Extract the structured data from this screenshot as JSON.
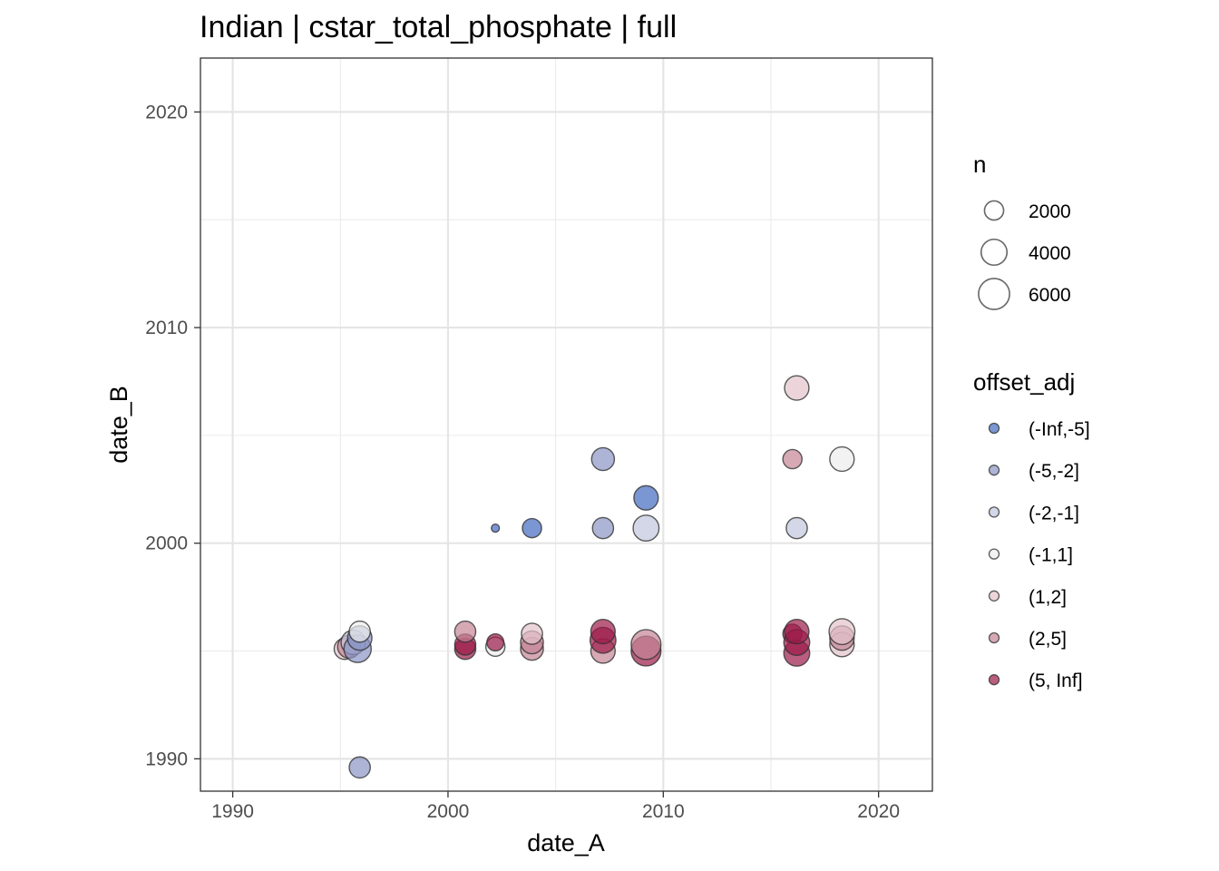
{
  "chart_data": {
    "type": "scatter",
    "title": "Indian | cstar_total_phosphate | full",
    "xlabel": "date_A",
    "ylabel": "date_B",
    "xlim": [
      1988.5,
      2022.5
    ],
    "ylim": [
      1988.5,
      2022.5
    ],
    "x_ticks": [
      1990,
      2000,
      2010,
      2020
    ],
    "y_ticks": [
      1990,
      2000,
      2010,
      2020
    ],
    "grid": true,
    "size_legend": {
      "title": "n",
      "entries": [
        {
          "label": "2000",
          "value": 2000
        },
        {
          "label": "4000",
          "value": 4000
        },
        {
          "label": "6000",
          "value": 6000
        }
      ]
    },
    "color_legend": {
      "title": "offset_adj",
      "entries": [
        {
          "label": "(-Inf,-5]",
          "color": "#4169c0"
        },
        {
          "label": "(-5,-2]",
          "color": "#8a94c4"
        },
        {
          "label": "(-2,-1]",
          "color": "#c2c6dd"
        },
        {
          "label": "(-1,1]",
          "color": "#ececec"
        },
        {
          "label": "(1,2]",
          "color": "#e3c3cc"
        },
        {
          "label": "(2,5]",
          "color": "#c58595"
        },
        {
          "label": "(5, Inf]",
          "color": "#9c1a48"
        }
      ]
    },
    "points": [
      {
        "x": 1995.2,
        "y": 1995.1,
        "n": 2500,
        "group": "(1,2]"
      },
      {
        "x": 1995.4,
        "y": 1995.2,
        "n": 3000,
        "group": "(2,5]"
      },
      {
        "x": 1995.6,
        "y": 1995.4,
        "n": 3500,
        "group": "(-2,-1]"
      },
      {
        "x": 1995.8,
        "y": 1995.1,
        "n": 4500,
        "group": "(-5,-2]"
      },
      {
        "x": 1995.9,
        "y": 1995.6,
        "n": 3500,
        "group": "(-5,-2]"
      },
      {
        "x": 1995.9,
        "y": 1995.9,
        "n": 2500,
        "group": "(-1,1]"
      },
      {
        "x": 1995.9,
        "y": 1989.6,
        "n": 2500,
        "group": "(-5,-2]"
      },
      {
        "x": 2000.8,
        "y": 1995.1,
        "n": 2500,
        "group": "(5, Inf]"
      },
      {
        "x": 2000.8,
        "y": 1995.3,
        "n": 2500,
        "group": "(5, Inf]"
      },
      {
        "x": 2000.8,
        "y": 1995.9,
        "n": 2500,
        "group": "(2,5]"
      },
      {
        "x": 2002.2,
        "y": 1995.2,
        "n": 2000,
        "group": "(-1,1]"
      },
      {
        "x": 2002.2,
        "y": 1995.4,
        "n": 1500,
        "group": "(5, Inf]"
      },
      {
        "x": 2002.2,
        "y": 2000.7,
        "n": 200,
        "group": "(-Inf,-5]"
      },
      {
        "x": 2003.9,
        "y": 1995.1,
        "n": 3000,
        "group": "(2,5]"
      },
      {
        "x": 2003.9,
        "y": 1995.4,
        "n": 3000,
        "group": "(2,5]"
      },
      {
        "x": 2003.9,
        "y": 1995.8,
        "n": 2500,
        "group": "(1,2]"
      },
      {
        "x": 2003.9,
        "y": 2000.7,
        "n": 2000,
        "group": "(-Inf,-5]"
      },
      {
        "x": 2007.2,
        "y": 1995.0,
        "n": 3500,
        "group": "(2,5]"
      },
      {
        "x": 2007.2,
        "y": 1995.5,
        "n": 4000,
        "group": "(5, Inf]"
      },
      {
        "x": 2007.2,
        "y": 1995.9,
        "n": 3500,
        "group": "(5, Inf]"
      },
      {
        "x": 2007.2,
        "y": 2000.7,
        "n": 2500,
        "group": "(-5,-2]"
      },
      {
        "x": 2007.2,
        "y": 2003.9,
        "n": 3000,
        "group": "(-5,-2]"
      },
      {
        "x": 2009.2,
        "y": 1995.0,
        "n": 5500,
        "group": "(5, Inf]"
      },
      {
        "x": 2009.2,
        "y": 1995.3,
        "n": 5500,
        "group": "(2,5]"
      },
      {
        "x": 2009.2,
        "y": 2000.7,
        "n": 4000,
        "group": "(-2,-1]"
      },
      {
        "x": 2009.2,
        "y": 2002.1,
        "n": 3500,
        "group": "(-Inf,-5]"
      },
      {
        "x": 2016.0,
        "y": 1995.8,
        "n": 2000,
        "group": "(5, Inf]"
      },
      {
        "x": 2016.2,
        "y": 1994.9,
        "n": 4000,
        "group": "(5, Inf]"
      },
      {
        "x": 2016.2,
        "y": 1995.4,
        "n": 4000,
        "group": "(5, Inf]"
      },
      {
        "x": 2016.2,
        "y": 1995.9,
        "n": 3500,
        "group": "(5, Inf]"
      },
      {
        "x": 2016.0,
        "y": 2003.9,
        "n": 2000,
        "group": "(2,5]"
      },
      {
        "x": 2016.2,
        "y": 2000.7,
        "n": 2500,
        "group": "(-2,-1]"
      },
      {
        "x": 2016.2,
        "y": 2007.2,
        "n": 3500,
        "group": "(1,2]"
      },
      {
        "x": 2018.3,
        "y": 1995.3,
        "n": 3500,
        "group": "(1,2]"
      },
      {
        "x": 2018.3,
        "y": 1995.6,
        "n": 3500,
        "group": "(2,5]"
      },
      {
        "x": 2018.3,
        "y": 1995.9,
        "n": 4000,
        "group": "(1,2]"
      },
      {
        "x": 2018.3,
        "y": 2003.9,
        "n": 3500,
        "group": "(-1,1]"
      }
    ]
  }
}
